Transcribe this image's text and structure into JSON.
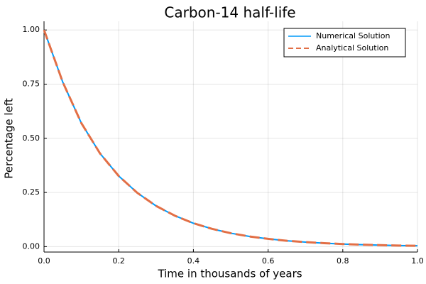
{
  "chart_data": {
    "type": "line",
    "title": "Carbon-14 half-life",
    "xlabel": "Time in thousands of years",
    "ylabel": "Percentage left",
    "xlim": [
      0,
      1
    ],
    "ylim": [
      -0.025,
      1.04
    ],
    "xticks": [
      0.0,
      0.2,
      0.4,
      0.6,
      0.8,
      1.0
    ],
    "xtick_labels": [
      "0.0",
      "0.2",
      "0.4",
      "0.6",
      "0.8",
      "1.0"
    ],
    "yticks": [
      0.0,
      0.25,
      0.5,
      0.75,
      1.0
    ],
    "ytick_labels": [
      "0.00",
      "0.25",
      "0.50",
      "0.75",
      "1.00"
    ],
    "grid": true,
    "legend_position": "top-right",
    "x": [
      0.0,
      0.05,
      0.1,
      0.15,
      0.2,
      0.25,
      0.3,
      0.35,
      0.4,
      0.45,
      0.5,
      0.55,
      0.6,
      0.65,
      0.7,
      0.75,
      0.8,
      0.85,
      0.9,
      0.95,
      1.0
    ],
    "series": [
      {
        "name": "Numerical Solution",
        "color": "#009af9",
        "style": "solid",
        "values": [
          1.0,
          0.76,
          0.57,
          0.43,
          0.326,
          0.248,
          0.188,
          0.143,
          0.108,
          0.082,
          0.062,
          0.047,
          0.036,
          0.027,
          0.021,
          0.016,
          0.012,
          0.009,
          0.007,
          0.005,
          0.004
        ]
      },
      {
        "name": "Analytical Solution",
        "color": "#e26f46",
        "style": "dashed",
        "values": [
          1.0,
          0.76,
          0.57,
          0.43,
          0.326,
          0.248,
          0.188,
          0.143,
          0.108,
          0.082,
          0.062,
          0.047,
          0.036,
          0.027,
          0.021,
          0.016,
          0.012,
          0.009,
          0.007,
          0.005,
          0.004
        ]
      }
    ]
  }
}
